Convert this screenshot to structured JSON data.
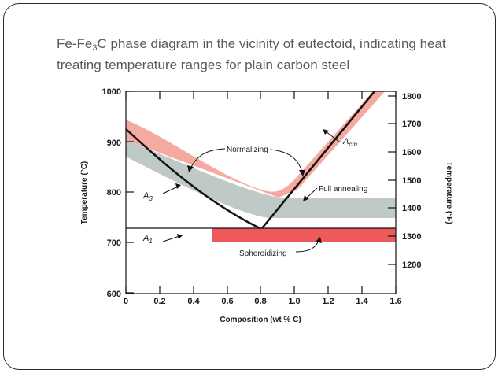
{
  "slide": {
    "title_pre": "Fe-Fe",
    "title_sub": "3",
    "title_post": "C phase diagram in the vicinity of eutectoid, indicating heat treating temperature ranges for plain carbon steel"
  },
  "diagram": {
    "xlabel": "Composition (wt % C)",
    "ylabel_left": "Temperature (°C)",
    "ylabel_right": "Temperature (°F)",
    "x_ticks": [
      "0",
      "0.2",
      "0.4",
      "0.6",
      "0.8",
      "1.0",
      "1.2",
      "1.4",
      "1.6"
    ],
    "y_left_ticks": [
      "600",
      "700",
      "800",
      "900",
      "1000"
    ],
    "y_right_ticks": [
      "1200",
      "1300",
      "1400",
      "1500",
      "1600",
      "1700",
      "1800"
    ],
    "labels": {
      "a3_main": "A",
      "a3_sub": "3",
      "a1_main": "A",
      "a1_sub": "1",
      "acm_main": "A",
      "acm_sub": "cm",
      "normalizing": "Normalizing",
      "full_annealing": "Full annealing",
      "spheroidizing": "Spheroidizing"
    },
    "colors": {
      "normalizing_band": "#f4aaa0",
      "annealing_band": "#bfc9c6",
      "spheroidizing_band": "#ee5a5a",
      "line": "#111111"
    }
  }
}
